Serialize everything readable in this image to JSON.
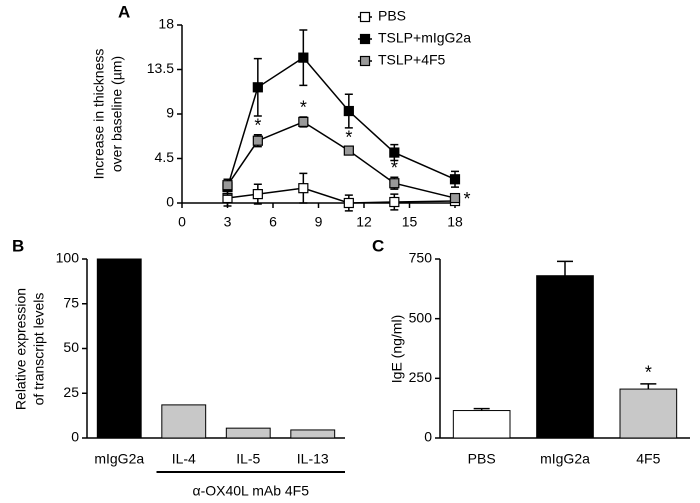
{
  "chart_data": [
    {
      "type": "line",
      "panel_label": "A",
      "ylabel": [
        "Increase in thickness",
        "over baseline (µm)"
      ],
      "x": [
        3,
        5,
        8,
        11,
        14,
        18
      ],
      "xlim": [
        0,
        18
      ],
      "xticks": [
        0,
        3,
        6,
        9,
        12,
        15,
        18
      ],
      "ylim": [
        0,
        18
      ],
      "yticks": [
        0,
        4.5,
        9,
        13.5,
        18
      ],
      "legend": "upper right",
      "series": [
        {
          "name": "PBS",
          "color": "#ffffff",
          "values": [
            0.5,
            0.9,
            1.5,
            0,
            0.1,
            0.2
          ],
          "errors": [
            0.8,
            1.0,
            1.5,
            0.8,
            0.8,
            0.4
          ]
        },
        {
          "name": "TSLP+mIgG2a",
          "color": "#000000",
          "values": [
            1.6,
            11.7,
            14.7,
            9.3,
            5.1,
            2.4
          ],
          "errors": [
            0.8,
            2.9,
            2.8,
            1.7,
            0.8,
            0.8
          ]
        },
        {
          "name": "TSLP+4F5",
          "color": "#999999",
          "values": [
            1.8,
            6.3,
            8.2,
            5.3,
            2.0,
            0.5
          ],
          "errors": [
            0.6,
            0.6,
            0.5,
            0.4,
            0.6,
            0.3
          ]
        }
      ],
      "annotations": [
        {
          "text": "*",
          "x": 5
        },
        {
          "text": "*",
          "x": 8
        },
        {
          "text": "*",
          "x": 11
        },
        {
          "text": "*",
          "x": 14
        },
        {
          "text": "*",
          "x": 18
        }
      ]
    },
    {
      "type": "bar",
      "panel_label": "B",
      "ylabel": [
        "Relative expression",
        "of transcript  levels"
      ],
      "categories": [
        "mIgG2a",
        "IL-4",
        "IL-5",
        "IL-13"
      ],
      "values": [
        100,
        18.5,
        5.5,
        4.5
      ],
      "colors": [
        "#000000",
        "#c8c8c8",
        "#c8c8c8",
        "#c8c8c8"
      ],
      "ylim": [
        0,
        100
      ],
      "yticks": [
        0,
        25,
        50,
        75,
        100
      ],
      "group_label": {
        "text": "α-OX40L mAb 4F5",
        "categories": [
          "IL-4",
          "IL-5",
          "IL-13"
        ]
      }
    },
    {
      "type": "bar",
      "panel_label": "C",
      "ylabel": [
        "IgE (ng/ml)"
      ],
      "categories": [
        "PBS",
        "mIgG2a",
        "4F5"
      ],
      "values": [
        115,
        680,
        205
      ],
      "errors": [
        8,
        60,
        22
      ],
      "colors": [
        "#ffffff",
        "#000000",
        "#c8c8c8"
      ],
      "ylim": [
        0,
        750
      ],
      "yticks": [
        0,
        250,
        500,
        750
      ],
      "annotations": [
        {
          "text": "*",
          "category": "4F5"
        }
      ]
    }
  ]
}
